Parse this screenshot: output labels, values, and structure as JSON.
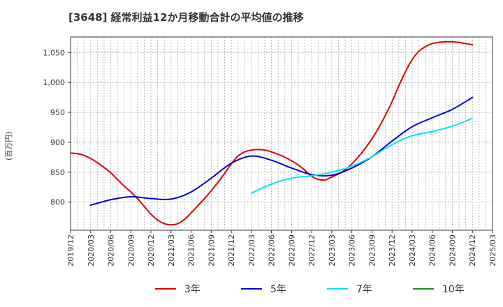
{
  "chart_data": {
    "type": "line",
    "title": "[3648]  経常利益12か月移動合計の平均値の推移",
    "ylabel": "(百万円)",
    "xlabel": "",
    "x_ticks": [
      "2019/12",
      "2020/03",
      "2020/06",
      "2020/09",
      "2020/12",
      "2021/03",
      "2021/06",
      "2021/09",
      "2021/12",
      "2022/03",
      "2022/06",
      "2022/09",
      "2022/12",
      "2023/03",
      "2023/06",
      "2023/09",
      "2023/12",
      "2024/03",
      "2024/06",
      "2024/09",
      "2024/12",
      "2025/03"
    ],
    "y_ticks": [
      800,
      850,
      900,
      950,
      1000,
      1050
    ],
    "y_tick_labels": [
      "800",
      "850",
      "900",
      "950",
      "1,000",
      "1,050"
    ],
    "xlim": [
      "2019/12",
      "2025/03"
    ],
    "ylim": [
      753,
      1076
    ],
    "grid": true,
    "legend_position": "bottom",
    "series": [
      {
        "name": "3年",
        "color": "#dd0000",
        "x": [
          "2019/12",
          "2020/01",
          "2020/02",
          "2020/03",
          "2020/04",
          "2020/05",
          "2020/06",
          "2020/07",
          "2020/08",
          "2020/09",
          "2020/10",
          "2020/11",
          "2020/12",
          "2021/01",
          "2021/02",
          "2021/03",
          "2021/04",
          "2021/05",
          "2021/06",
          "2021/07",
          "2021/08",
          "2021/09",
          "2021/10",
          "2021/11",
          "2021/12",
          "2022/01",
          "2022/02",
          "2022/03",
          "2022/04",
          "2022/05",
          "2022/06",
          "2022/07",
          "2022/08",
          "2022/09",
          "2022/10",
          "2022/11",
          "2022/12",
          "2023/01",
          "2023/02",
          "2023/03",
          "2023/04",
          "2023/05",
          "2023/06",
          "2023/07",
          "2023/08",
          "2023/09",
          "2023/10",
          "2023/11",
          "2023/12",
          "2024/01",
          "2024/02",
          "2024/03",
          "2024/04",
          "2024/05",
          "2024/06",
          "2024/07",
          "2024/08",
          "2024/09",
          "2024/10",
          "2024/11",
          "2024/12"
        ],
        "values": [
          882,
          881,
          878,
          873,
          866,
          858,
          849,
          838,
          827,
          817,
          806,
          793,
          780,
          770,
          764,
          762,
          764,
          771,
          782,
          794,
          806,
          819,
          833,
          848,
          864,
          877,
          884,
          887,
          888,
          887,
          884,
          880,
          875,
          869,
          862,
          853,
          843,
          838,
          837,
          842,
          847,
          854,
          864,
          876,
          890,
          906,
          924,
          945,
          968,
          994,
          1018,
          1038,
          1052,
          1060,
          1065,
          1067,
          1068,
          1068,
          1067,
          1065,
          1063
        ]
      },
      {
        "name": "5年",
        "color": "#0000cc",
        "x": [
          "2020/03",
          "2020/06",
          "2020/09",
          "2020/12",
          "2021/03",
          "2021/06",
          "2021/09",
          "2021/12",
          "2022/03",
          "2022/06",
          "2022/09",
          "2022/12",
          "2023/03",
          "2023/06",
          "2023/09",
          "2023/12",
          "2024/03",
          "2024/06",
          "2024/09",
          "2024/12"
        ],
        "values": [
          795,
          804,
          809,
          806,
          805,
          817,
          840,
          865,
          877,
          870,
          857,
          846,
          845,
          857,
          876,
          902,
          926,
          941,
          955,
          975
        ]
      },
      {
        "name": "7年",
        "color": "#00e5ee",
        "x": [
          "2022/03",
          "2022/06",
          "2022/09",
          "2022/12",
          "2023/03",
          "2023/06",
          "2023/09",
          "2023/12",
          "2024/03",
          "2024/06",
          "2024/09",
          "2024/12"
        ],
        "values": [
          815,
          830,
          840,
          844,
          850,
          860,
          876,
          896,
          911,
          918,
          927,
          940
        ]
      },
      {
        "name": "10年",
        "color": "#228b22",
        "x": [],
        "values": []
      }
    ]
  }
}
